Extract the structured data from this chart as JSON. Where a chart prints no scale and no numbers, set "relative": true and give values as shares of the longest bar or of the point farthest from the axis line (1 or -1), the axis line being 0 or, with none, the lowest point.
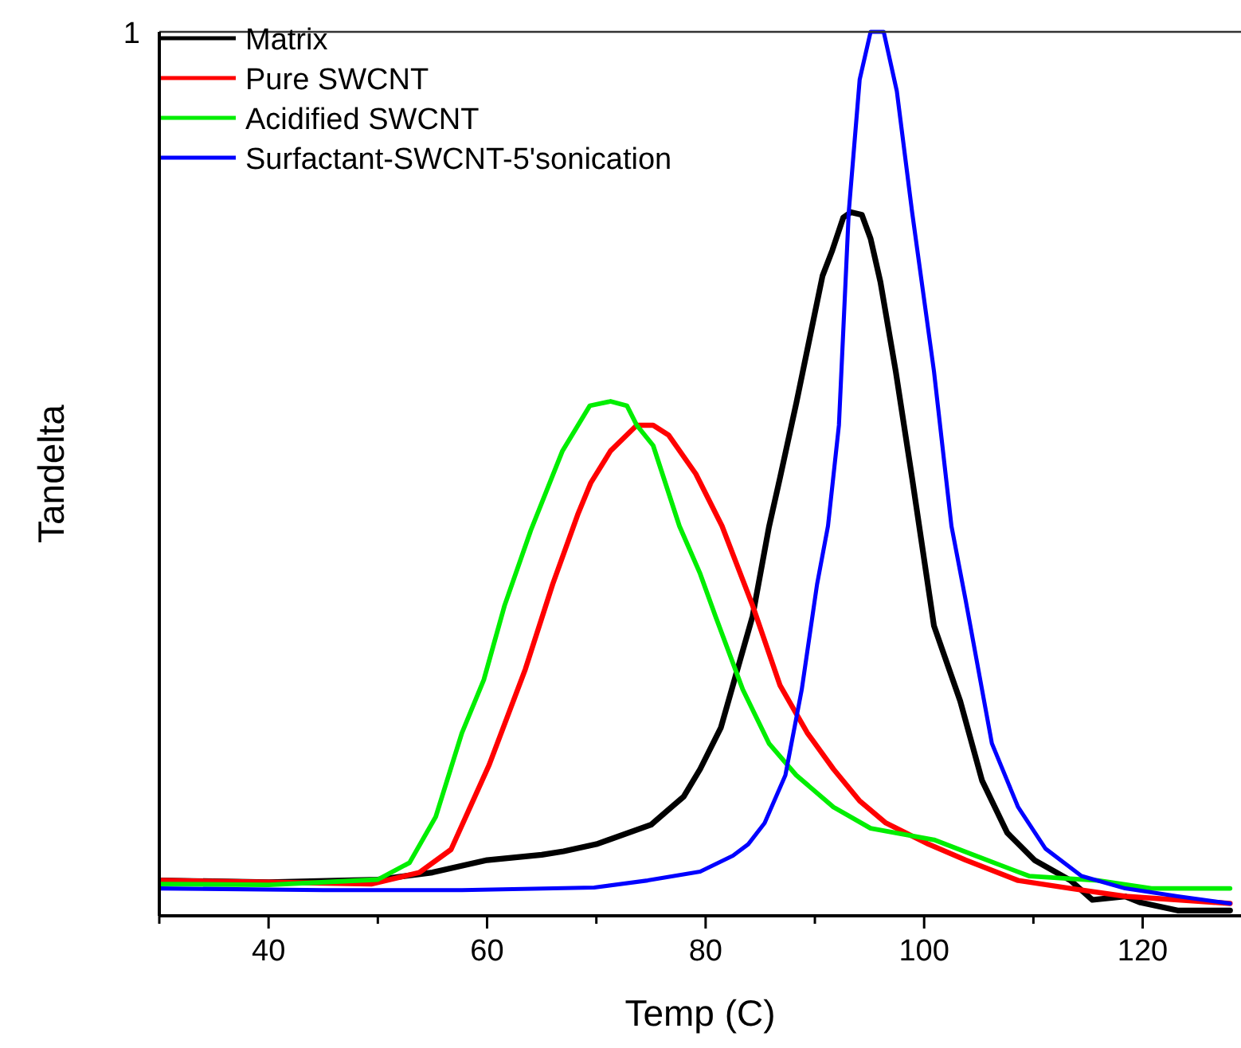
{
  "chart_data": {
    "type": "line",
    "xlabel": "Temp (C)",
    "ylabel": "Tandelta",
    "relative": true,
    "annotations": [
      "1"
    ],
    "xlim": [
      30,
      129
    ],
    "xticks": [
      {
        "value": 30,
        "label": null
      },
      40,
      {
        "value": 50,
        "label": null
      },
      60,
      {
        "value": 70,
        "label": null
      },
      80,
      {
        "value": 90,
        "label": null
      },
      100,
      {
        "value": 110,
        "label": null
      },
      120
    ],
    "legend": "top left",
    "grid": false,
    "line_style": "solid",
    "marker": "none",
    "series": [
      {
        "name": "Matrix",
        "color": "#000000",
        "x": [
          30,
          40,
          50,
          55,
          60,
          65,
          67,
          70,
          75,
          78,
          79.5,
          81.4,
          84.3,
          85.8,
          86.8,
          88.3,
          90.7,
          91.6,
          92.6,
          93.3,
          94.3,
          95.1,
          96,
          97.4,
          98.9,
          100.9,
          103.3,
          105.3,
          107.6,
          110.1,
          113.4,
          115.4,
          118.4,
          119.8,
          123.2,
          128
        ],
        "values": [
          0.04,
          0.038,
          0.041,
          0.049,
          0.063,
          0.069,
          0.073,
          0.081,
          0.103,
          0.135,
          0.166,
          0.213,
          0.339,
          0.44,
          0.495,
          0.58,
          0.724,
          0.753,
          0.79,
          0.796,
          0.793,
          0.766,
          0.717,
          0.616,
          0.495,
          0.328,
          0.243,
          0.153,
          0.094,
          0.063,
          0.04,
          0.018,
          0.022,
          0.015,
          0.006,
          0.006
        ]
      },
      {
        "name": "Pure SWCNT",
        "color": "#ff0000",
        "x": [
          30,
          40,
          49.4,
          53.8,
          56.7,
          60.2,
          63.5,
          66,
          68.3,
          69.5,
          71.3,
          73.7,
          75.2,
          76.6,
          79.1,
          81.5,
          84.3,
          86.8,
          89.3,
          91.7,
          94.1,
          96.5,
          100.4,
          103.8,
          108.6,
          113.4,
          118.4,
          128
        ],
        "values": [
          0.04,
          0.038,
          0.036,
          0.049,
          0.075,
          0.171,
          0.279,
          0.375,
          0.454,
          0.49,
          0.526,
          0.555,
          0.555,
          0.544,
          0.5,
          0.441,
          0.351,
          0.261,
          0.207,
          0.166,
          0.13,
          0.105,
          0.081,
          0.063,
          0.04,
          0.031,
          0.022,
          0.014
        ]
      },
      {
        "name": "Acidified SWCNT",
        "color": "#00ee00",
        "x": [
          30,
          40,
          50,
          52.9,
          55.3,
          57.7,
          59.7,
          61.6,
          64,
          66.9,
          69.4,
          71.3,
          72.8,
          73.7,
          75.2,
          77.6,
          79.5,
          80.9,
          83.4,
          85.8,
          88.3,
          91.7,
          95.1,
          100.9,
          104.7,
          109.6,
          115.9,
          120.8,
          128
        ],
        "values": [
          0.036,
          0.035,
          0.041,
          0.06,
          0.112,
          0.207,
          0.267,
          0.351,
          0.436,
          0.526,
          0.577,
          0.582,
          0.577,
          0.555,
          0.532,
          0.441,
          0.387,
          0.339,
          0.256,
          0.195,
          0.159,
          0.123,
          0.099,
          0.086,
          0.068,
          0.045,
          0.04,
          0.031,
          0.031
        ]
      },
      {
        "name": "Surfactant-SWCNT-5'sonication",
        "color": "#0000ff",
        "x": [
          30,
          45,
          57.7,
          69.8,
          74.7,
          79.5,
          82.5,
          83.9,
          85.4,
          87.3,
          88.8,
          90.2,
          91.2,
          92.2,
          93.1,
          94.1,
          95.1,
          96.3,
          97.5,
          98.9,
          100.9,
          102.5,
          103.8,
          106.2,
          108.6,
          111.1,
          114.4,
          118.4,
          123.2,
          128
        ],
        "values": [
          0.031,
          0.029,
          0.029,
          0.032,
          0.04,
          0.05,
          0.068,
          0.081,
          0.105,
          0.159,
          0.256,
          0.375,
          0.441,
          0.555,
          0.796,
          0.946,
          1,
          1,
          0.933,
          0.796,
          0.616,
          0.441,
          0.357,
          0.195,
          0.123,
          0.076,
          0.045,
          0.031,
          0.022,
          0.014
        ]
      }
    ]
  }
}
